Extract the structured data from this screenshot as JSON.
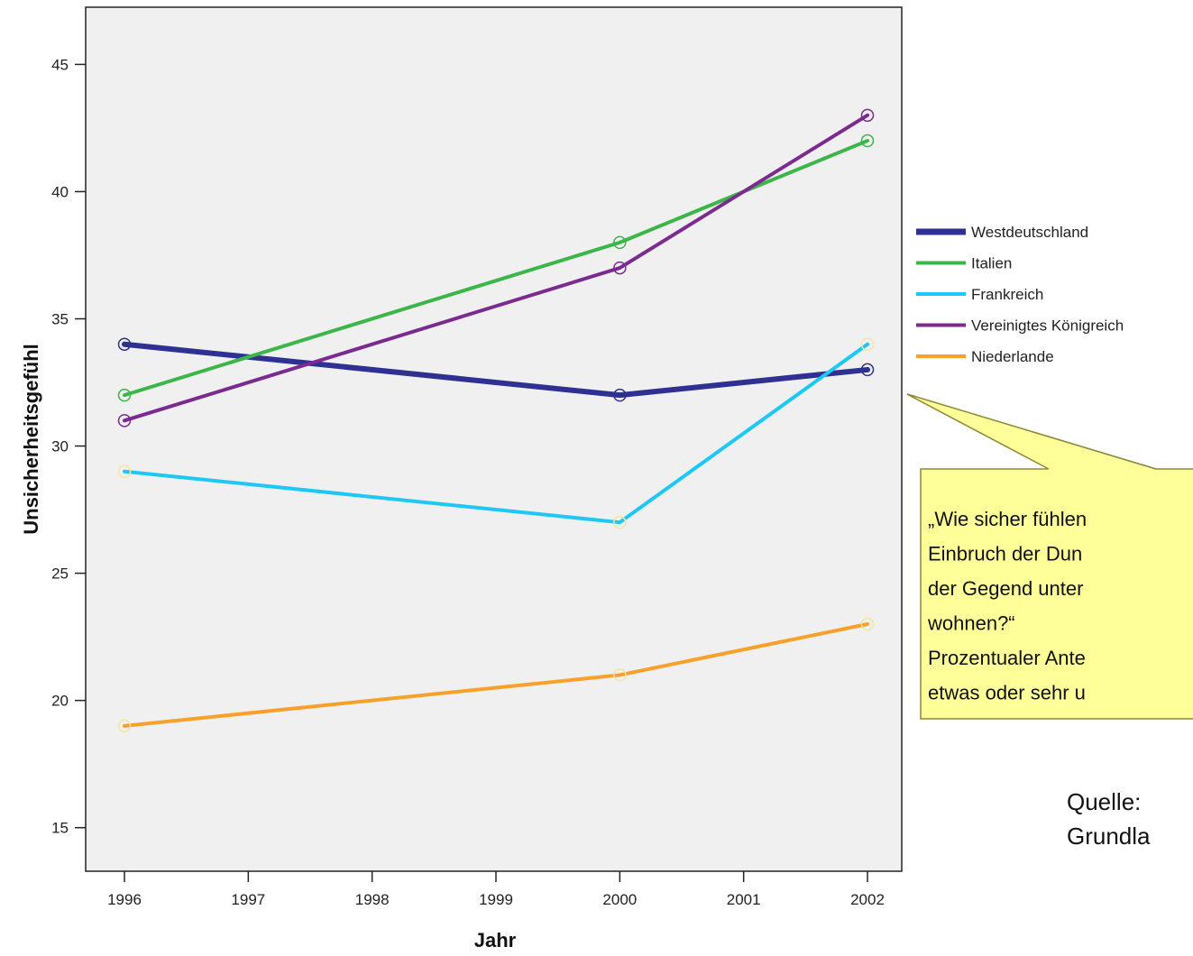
{
  "chart_data": {
    "type": "line",
    "x": [
      1996,
      2000,
      2002
    ],
    "x_ticks": [
      "1996",
      "1997",
      "1998",
      "1999",
      "2000",
      "2001",
      "2002"
    ],
    "y_ticks": [
      "15",
      "20",
      "25",
      "30",
      "35",
      "40",
      "45"
    ],
    "xlabel": "Jahr",
    "ylabel": "Unsicherheitsgefühl",
    "xlim": [
      1996,
      2002
    ],
    "ylim": [
      13.5,
      47
    ],
    "grid": false,
    "legend_position": "right",
    "series": [
      {
        "name": "Westdeutschland",
        "values": [
          34,
          32,
          33
        ],
        "color": "#2e3192"
      },
      {
        "name": "Italien",
        "values": [
          32,
          38,
          42
        ],
        "color": "#3cb549"
      },
      {
        "name": "Frankreich",
        "values": [
          29,
          27,
          34
        ],
        "color": "#1ec8f5"
      },
      {
        "name": "Vereinigtes Königreich",
        "values": [
          31,
          37,
          43
        ],
        "color": "#7b2b8f"
      },
      {
        "name": "Niederlande",
        "values": [
          19,
          21,
          23
        ],
        "color": "#f7a12a"
      }
    ],
    "annotation": {
      "lines": [
        "„Wie sicher fühlen",
        "Einbruch der Dun",
        "der Gegend unter",
        "wohnen?“",
        "Prozentualer Ante",
        "etwas oder sehr u"
      ]
    },
    "source": {
      "lines": [
        "Quelle:",
        "Grundla"
      ]
    }
  },
  "colors": {
    "plot_background": "#f0f0f0",
    "callout_fill": "#ffff99",
    "callout_border": "#8a8a3a"
  }
}
